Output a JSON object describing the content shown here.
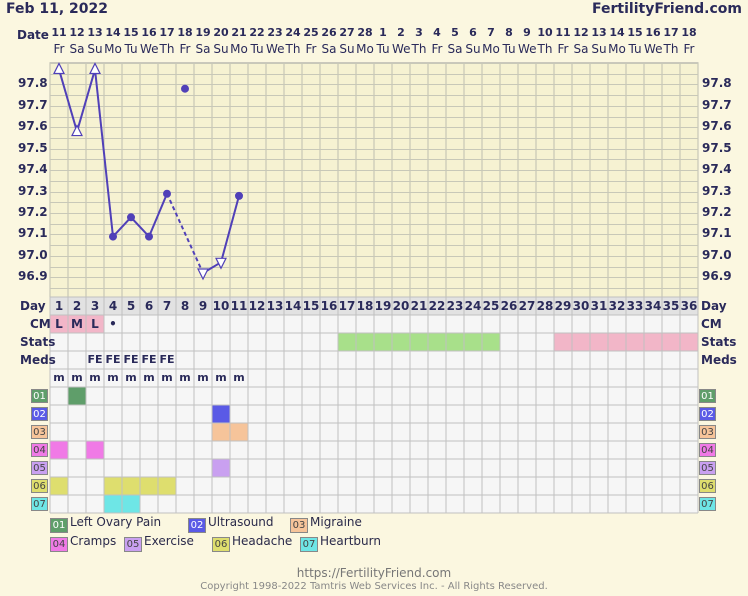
{
  "header": {
    "date": "Feb 11, 2022",
    "brand": "FertilityFriend.com"
  },
  "date_row_label": "Date",
  "dates": [
    "11",
    "12",
    "13",
    "14",
    "15",
    "16",
    "17",
    "18",
    "19",
    "20",
    "21",
    "22",
    "23",
    "24",
    "25",
    "26",
    "27",
    "28",
    "1",
    "2",
    "3",
    "4",
    "5",
    "6",
    "7",
    "8",
    "9",
    "10",
    "11",
    "12",
    "13",
    "14",
    "15",
    "16",
    "17",
    "18"
  ],
  "weekdays": [
    "Fr",
    "Sa",
    "Su",
    "Mo",
    "Tu",
    "We",
    "Th",
    "Fr",
    "Sa",
    "Su",
    "Mo",
    "Tu",
    "We",
    "Th",
    "Fr",
    "Sa",
    "Su",
    "Mo",
    "Tu",
    "We",
    "Th",
    "Fr",
    "Sa",
    "Su",
    "Mo",
    "Tu",
    "We",
    "Th",
    "Fr",
    "Sa",
    "Su",
    "Mo",
    "Tu",
    "We",
    "Th",
    "Fr"
  ],
  "temp_axis": [
    "97.8",
    "97.7",
    "97.6",
    "97.5",
    "97.4",
    "97.3",
    "97.2",
    "97.1",
    "97.0",
    "96.9"
  ],
  "chart_data": {
    "type": "line",
    "ylim": [
      96.85,
      97.9
    ],
    "temps": [
      {
        "day": 1,
        "value": 97.87,
        "marker": "open-up"
      },
      {
        "day": 2,
        "value": 97.58,
        "marker": "open-up"
      },
      {
        "day": 3,
        "value": 97.87,
        "marker": "open-up"
      },
      {
        "day": 4,
        "value": 97.09,
        "marker": "dot"
      },
      {
        "day": 5,
        "value": 97.18,
        "marker": "dot"
      },
      {
        "day": 6,
        "value": 97.09,
        "marker": "dot"
      },
      {
        "day": 7,
        "value": 97.29,
        "marker": "dot"
      },
      {
        "day": 8,
        "value": 97.78,
        "marker": "dot",
        "connected": false
      },
      {
        "day": 9,
        "value": 96.92,
        "marker": "open-down"
      },
      {
        "day": 10,
        "value": 96.97,
        "marker": "open-down"
      },
      {
        "day": 11,
        "value": 97.28,
        "marker": "dot"
      }
    ],
    "dashed_segments": [
      [
        7,
        9
      ]
    ]
  },
  "row_labels": {
    "day": "Day",
    "cm": "CM",
    "stats": "Stats",
    "meds": "Meds"
  },
  "days": [
    "1",
    "2",
    "3",
    "4",
    "5",
    "6",
    "7",
    "8",
    "9",
    "10",
    "11",
    "12",
    "13",
    "14",
    "15",
    "16",
    "17",
    "18",
    "19",
    "20",
    "21",
    "22",
    "23",
    "24",
    "25",
    "26",
    "27",
    "28",
    "29",
    "30",
    "31",
    "32",
    "33",
    "34",
    "35",
    "36"
  ],
  "cm": [
    "L",
    "M",
    "L",
    "•"
  ],
  "meds": [
    "",
    "",
    "FE",
    "FE",
    "FE",
    "FE",
    "FE"
  ],
  "m_row": [
    "m",
    "m",
    "m",
    "m",
    "m",
    "m",
    "m",
    "m",
    "m",
    "m",
    "m"
  ],
  "stats_bars": [
    {
      "from": 17,
      "to": 25,
      "color": "#a8e08a"
    },
    {
      "from": 29,
      "to": 36,
      "color": "#f2b6c8"
    }
  ],
  "symptom_rows": [
    {
      "code": "01",
      "color": "#5f9e6a",
      "cells": [
        2
      ]
    },
    {
      "code": "02",
      "color": "#5a5ae6",
      "cells": [
        10
      ]
    },
    {
      "code": "03",
      "color": "#f6c49a",
      "cells": [
        10,
        11
      ]
    },
    {
      "code": "04",
      "color": "#f07ae6",
      "cells": [
        1,
        3
      ]
    },
    {
      "code": "05",
      "color": "#c9a0f0",
      "cells": [
        10
      ]
    },
    {
      "code": "06",
      "color": "#dede6e",
      "cells": [
        1,
        4,
        5,
        6,
        7
      ]
    },
    {
      "code": "07",
      "color": "#6ee6e6",
      "cells": [
        4,
        5
      ]
    }
  ],
  "badges": [
    {
      "code": "01",
      "color": "#5f9e6a",
      "text_color": "#ffffff"
    },
    {
      "code": "02",
      "color": "#5a5ae6",
      "text_color": "#ffffff"
    },
    {
      "code": "03",
      "color": "#f6c49a",
      "text_color": "#444444"
    },
    {
      "code": "04",
      "color": "#f07ae6",
      "text_color": "#444444"
    },
    {
      "code": "05",
      "color": "#c9a0f0",
      "text_color": "#444444"
    },
    {
      "code": "06",
      "color": "#dede6e",
      "text_color": "#444444"
    },
    {
      "code": "07",
      "color": "#6ee6e6",
      "text_color": "#444444"
    }
  ],
  "legend": [
    {
      "code": "01",
      "label": "Left Ovary Pain"
    },
    {
      "code": "02",
      "label": "Ultrasound"
    },
    {
      "code": "03",
      "label": "Migraine"
    },
    {
      "code": "04",
      "label": "Cramps"
    },
    {
      "code": "05",
      "label": "Exercise"
    },
    {
      "code": "06",
      "label": "Headache"
    },
    {
      "code": "07",
      "label": "Heartburn"
    }
  ],
  "footer": {
    "url": "https://FertilityFriend.com",
    "copyright": "Copyright 1998-2022 Tamtris Web Services Inc. - All Rights Reserved."
  }
}
